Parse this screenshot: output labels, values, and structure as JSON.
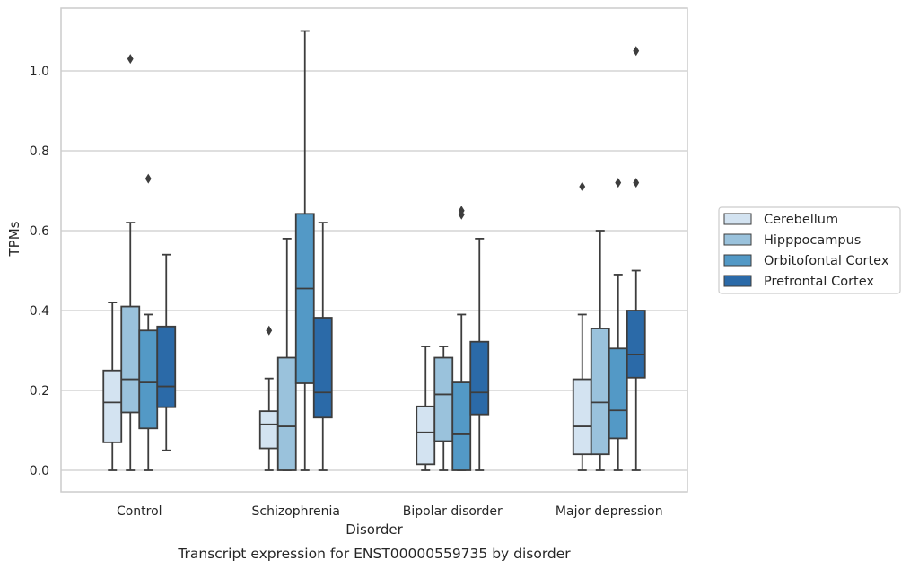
{
  "chart_data": {
    "type": "boxplot",
    "title": "",
    "xlabel": "Disorder",
    "ylabel": "TPMs",
    "caption": "Transcript expression for ENST00000559735 by disorder",
    "ylim": [
      -0.052,
      1.16
    ],
    "yticks": [
      0.0,
      0.2,
      0.4,
      0.6,
      0.8,
      1.0
    ],
    "ytick_labels": [
      "0.0",
      "0.2",
      "0.4",
      "0.6",
      "0.8",
      "1.0"
    ],
    "grid": "horizontal",
    "legend_position": "right",
    "categories": [
      "Control",
      "Schizophrenia",
      "Bipolar disorder",
      "Major depression"
    ],
    "series": [
      {
        "name": "Cerebellum",
        "color": "#d3e3f1",
        "boxes": [
          {
            "whislo": 0.0,
            "q1": 0.07,
            "median": 0.17,
            "q3": 0.25,
            "whishi": 0.42,
            "fliers": []
          },
          {
            "whislo": 0.0,
            "q1": 0.055,
            "median": 0.115,
            "q3": 0.148,
            "whishi": 0.23,
            "fliers": [
              0.35
            ]
          },
          {
            "whislo": 0.0,
            "q1": 0.015,
            "median": 0.095,
            "q3": 0.16,
            "whishi": 0.31,
            "fliers": []
          },
          {
            "whislo": 0.0,
            "q1": 0.04,
            "median": 0.11,
            "q3": 0.228,
            "whishi": 0.39,
            "fliers": [
              0.71
            ]
          }
        ]
      },
      {
        "name": "Hipppocampus",
        "color": "#9ac2dc",
        "boxes": [
          {
            "whislo": 0.0,
            "q1": 0.145,
            "median": 0.228,
            "q3": 0.41,
            "whishi": 0.62,
            "fliers": [
              1.03
            ]
          },
          {
            "whislo": 0.0,
            "q1": 0.0,
            "median": 0.11,
            "q3": 0.282,
            "whishi": 0.58,
            "fliers": []
          },
          {
            "whislo": 0.0,
            "q1": 0.073,
            "median": 0.19,
            "q3": 0.282,
            "whishi": 0.31,
            "fliers": []
          },
          {
            "whislo": 0.0,
            "q1": 0.04,
            "median": 0.17,
            "q3": 0.355,
            "whishi": 0.6,
            "fliers": []
          }
        ]
      },
      {
        "name": "Orbitofontal Cortex",
        "color": "#5399c6",
        "boxes": [
          {
            "whislo": 0.0,
            "q1": 0.105,
            "median": 0.22,
            "q3": 0.35,
            "whishi": 0.39,
            "fliers": [
              0.73
            ]
          },
          {
            "whislo": 0.0,
            "q1": 0.218,
            "median": 0.455,
            "q3": 0.642,
            "whishi": 1.1,
            "fliers": []
          },
          {
            "whislo": 0.0,
            "q1": 0.0,
            "median": 0.09,
            "q3": 0.22,
            "whishi": 0.39,
            "fliers": [
              0.64,
              0.65
            ]
          },
          {
            "whislo": 0.0,
            "q1": 0.08,
            "median": 0.15,
            "q3": 0.305,
            "whishi": 0.49,
            "fliers": [
              0.72
            ]
          }
        ]
      },
      {
        "name": "Prefrontal Cortex",
        "color": "#2b6aa8",
        "boxes": [
          {
            "whislo": 0.05,
            "q1": 0.158,
            "median": 0.21,
            "q3": 0.36,
            "whishi": 0.54,
            "fliers": []
          },
          {
            "whislo": 0.0,
            "q1": 0.132,
            "median": 0.195,
            "q3": 0.382,
            "whishi": 0.62,
            "fliers": []
          },
          {
            "whislo": 0.0,
            "q1": 0.14,
            "median": 0.195,
            "q3": 0.322,
            "whishi": 0.58,
            "fliers": []
          },
          {
            "whislo": 0.0,
            "q1": 0.232,
            "median": 0.29,
            "q3": 0.4,
            "whishi": 0.5,
            "fliers": [
              0.72,
              1.05
            ]
          }
        ]
      }
    ]
  }
}
